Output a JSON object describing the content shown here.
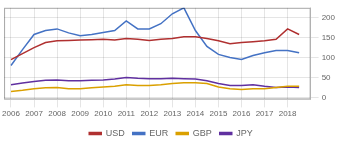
{
  "chart_data": {
    "type": "line",
    "x": [
      2006,
      2006.5,
      2007,
      2007.5,
      2008,
      2008.5,
      2009,
      2009.5,
      2010,
      2010.5,
      2011,
      2011.5,
      2012,
      2012.5,
      2013,
      2013.5,
      2014,
      2014.5,
      2015,
      2015.5,
      2016,
      2016.5,
      2017,
      2017.5,
      2018,
      2018.5
    ],
    "series": [
      {
        "name": "USD",
        "color": "#b03030",
        "values": [
          95,
          110,
          125,
          138,
          142,
          143,
          144,
          145,
          146,
          144,
          148,
          146,
          143,
          146,
          148,
          152,
          152,
          148,
          142,
          135,
          138,
          140,
          142,
          146,
          172,
          158
        ]
      },
      {
        "name": "EUR",
        "color": "#4472c4",
        "values": [
          80,
          120,
          158,
          168,
          172,
          162,
          155,
          158,
          163,
          168,
          192,
          172,
          172,
          185,
          210,
          225,
          168,
          128,
          108,
          100,
          95,
          105,
          112,
          118,
          118,
          112
        ]
      },
      {
        "name": "GBP",
        "color": "#daa000",
        "values": [
          15,
          18,
          22,
          24,
          25,
          22,
          22,
          24,
          26,
          28,
          32,
          30,
          30,
          32,
          35,
          37,
          37,
          35,
          26,
          22,
          20,
          22,
          22,
          25,
          28,
          28
        ]
      },
      {
        "name": "JPY",
        "color": "#6030a0",
        "values": [
          32,
          36,
          40,
          43,
          44,
          42,
          42,
          43,
          44,
          46,
          50,
          48,
          47,
          47,
          48,
          47,
          46,
          42,
          35,
          30,
          30,
          32,
          28,
          25,
          26,
          25
        ]
      }
    ],
    "xlim": [
      2005.7,
      2019.0
    ],
    "xticks": [
      2006,
      2007,
      2008,
      2009,
      2010,
      2011,
      2012,
      2013,
      2014,
      2015,
      2016,
      2017,
      2018
    ],
    "ylim": [
      -5,
      225
    ],
    "yticks": [
      0,
      50,
      100,
      150,
      200
    ],
    "grid": true,
    "legend": "bottom"
  }
}
